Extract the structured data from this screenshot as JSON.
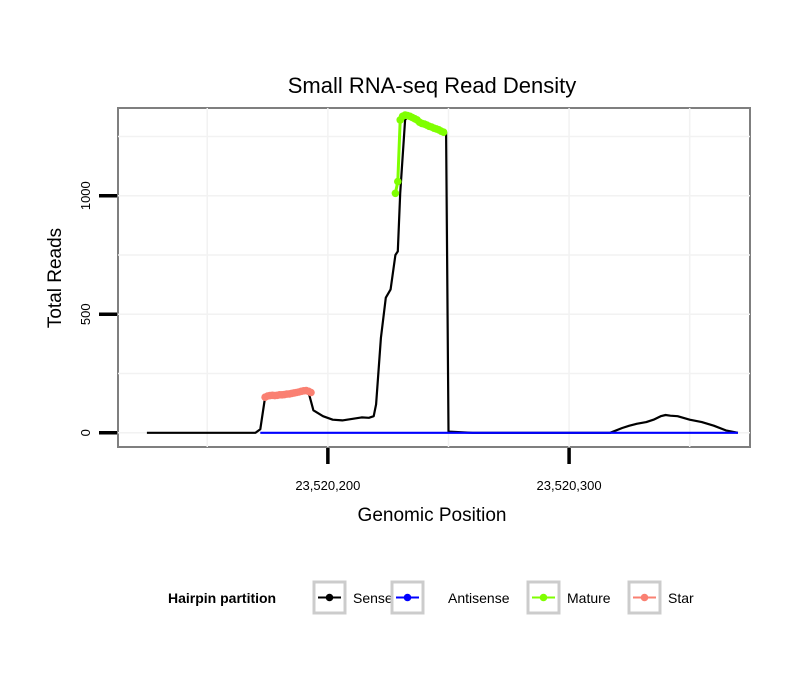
{
  "chart_data": {
    "type": "line",
    "title": "Small RNA-seq Read Density",
    "xlabel": "Genomic Position",
    "ylabel": "Total Reads",
    "xlim": [
      23520113,
      23520375
    ],
    "ylim": [
      -60,
      1370
    ],
    "x_ticks": [
      23520200,
      23520300
    ],
    "x_tick_labels": [
      "23,520,200",
      "23,520,300"
    ],
    "y_ticks": [
      0,
      500,
      1000
    ],
    "y_tick_labels": [
      "0",
      "500",
      "1000"
    ],
    "grid": true,
    "legend": {
      "title": "Hairpin partition",
      "position": "bottom",
      "entries": [
        {
          "name": "Sense",
          "color": "#000000"
        },
        {
          "name": "Antisense",
          "color": "#0000ff"
        },
        {
          "name": "Mature",
          "color": "#7fff00"
        },
        {
          "name": "Star",
          "color": "#fa8072"
        }
      ]
    },
    "series": [
      {
        "name": "Sense",
        "color": "#000000",
        "x": [
          23520125,
          23520170,
          23520172,
          23520174,
          23520176,
          23520190,
          23520192,
          23520194,
          23520198,
          23520202,
          23520206,
          23520214,
          23520217,
          23520219,
          23520220,
          23520222,
          23520224,
          23520226,
          23520228,
          23520229,
          23520230,
          23520232,
          23520234,
          23520236,
          23520240,
          23520244,
          23520246,
          23520248,
          23520249,
          23520250,
          23520260,
          23520300,
          23520317,
          23520322,
          23520325,
          23520328,
          23520332,
          23520335,
          23520338,
          23520340,
          23520342,
          23520345,
          23520350,
          23520355,
          23520360,
          23520365,
          23520370
        ],
        "y": [
          0,
          0,
          15,
          150,
          158,
          175,
          170,
          95,
          70,
          55,
          52,
          65,
          63,
          70,
          120,
          400,
          570,
          605,
          750,
          765,
          1010,
          1320,
          1340,
          1325,
          1305,
          1285,
          1275,
          1270,
          1265,
          5,
          0,
          0,
          0,
          20,
          30,
          38,
          45,
          55,
          70,
          75,
          72,
          70,
          55,
          45,
          30,
          10,
          0
        ]
      },
      {
        "name": "Antisense",
        "color": "#0000ff",
        "x": [
          23520172,
          23520370
        ],
        "y": [
          0,
          0
        ]
      },
      {
        "name": "Mature",
        "color": "#7fff00",
        "x": [
          23520228,
          23520229,
          23520230,
          23520231,
          23520232,
          23520233,
          23520234,
          23520235,
          23520236,
          23520237,
          23520238,
          23520239,
          23520240,
          23520241,
          23520242,
          23520243,
          23520244,
          23520245,
          23520246,
          23520247,
          23520248
        ],
        "y": [
          1010,
          1060,
          1320,
          1335,
          1340,
          1338,
          1335,
          1330,
          1325,
          1320,
          1310,
          1305,
          1302,
          1298,
          1293,
          1290,
          1285,
          1282,
          1278,
          1272,
          1268
        ]
      },
      {
        "name": "Star",
        "color": "#fa8072",
        "x": [
          23520174,
          23520175,
          23520176,
          23520177,
          23520178,
          23520179,
          23520180,
          23520181,
          23520182,
          23520183,
          23520184,
          23520185,
          23520186,
          23520187,
          23520188,
          23520189,
          23520190,
          23520191,
          23520192,
          23520193
        ],
        "y": [
          150,
          155,
          157,
          158,
          157,
          158,
          160,
          160,
          161,
          163,
          164,
          166,
          168,
          170,
          172,
          175,
          177,
          178,
          175,
          170
        ]
      }
    ]
  }
}
